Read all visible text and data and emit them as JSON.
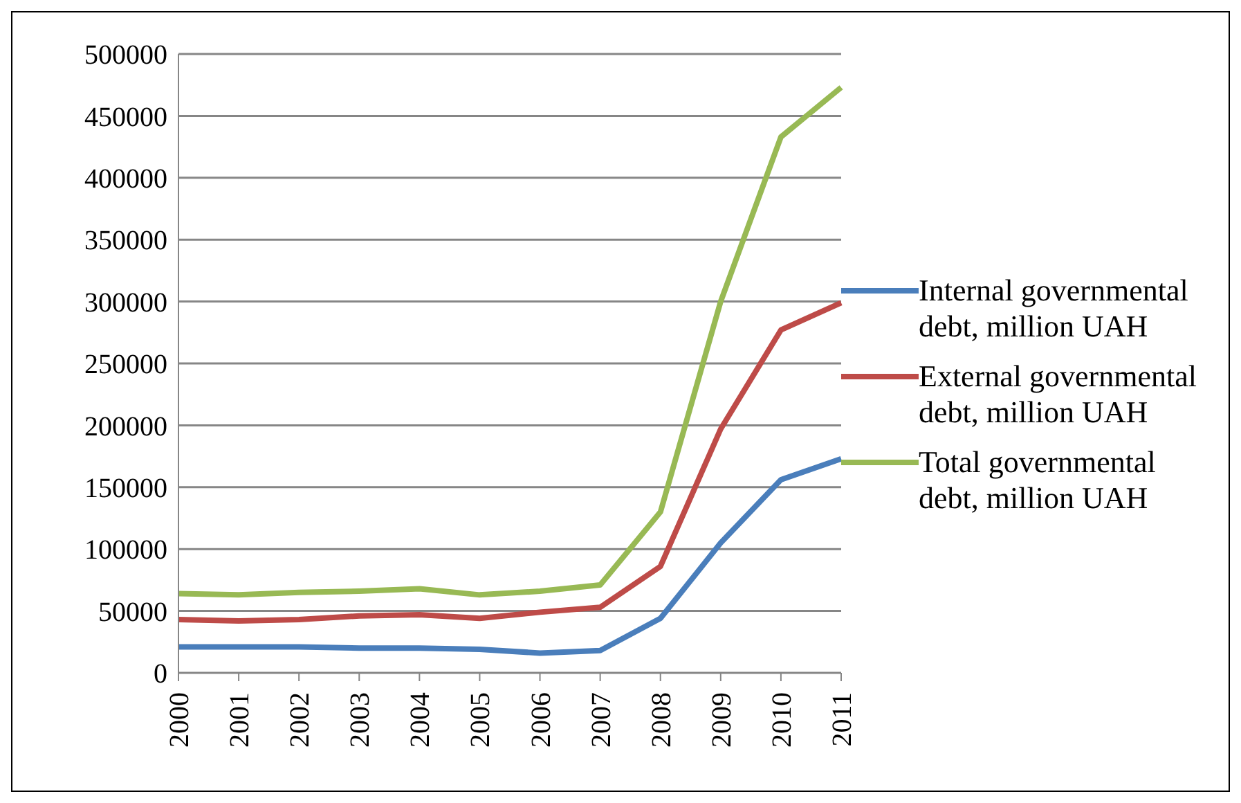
{
  "chart_data": {
    "type": "line",
    "categories": [
      "2000",
      "2001",
      "2002",
      "2003",
      "2004",
      "2005",
      "2006",
      "2007",
      "2008",
      "2009",
      "2010",
      "2011"
    ],
    "series": [
      {
        "name": "Internal governmental debt, million UAH",
        "color": "#4a7ebb",
        "values": [
          21000,
          21000,
          21000,
          20000,
          20000,
          19000,
          16000,
          18000,
          44000,
          105000,
          156000,
          173000
        ]
      },
      {
        "name": "External governmental debt, million UAH",
        "color": "#be4b48",
        "values": [
          43000,
          42000,
          43000,
          46000,
          47000,
          44000,
          49000,
          53000,
          86000,
          197000,
          277000,
          299000
        ]
      },
      {
        "name": "Total governmental debt, million UAH",
        "color": "#98b954",
        "values": [
          64000,
          63000,
          65000,
          66000,
          68000,
          63000,
          66000,
          71000,
          130000,
          300000,
          433000,
          473000
        ]
      }
    ],
    "ylim": [
      0,
      500000
    ],
    "yticks": [
      0,
      50000,
      100000,
      150000,
      200000,
      250000,
      300000,
      350000,
      400000,
      450000,
      500000
    ],
    "grid": "y",
    "legend": "right",
    "marker": "none",
    "line_style": "solid"
  }
}
